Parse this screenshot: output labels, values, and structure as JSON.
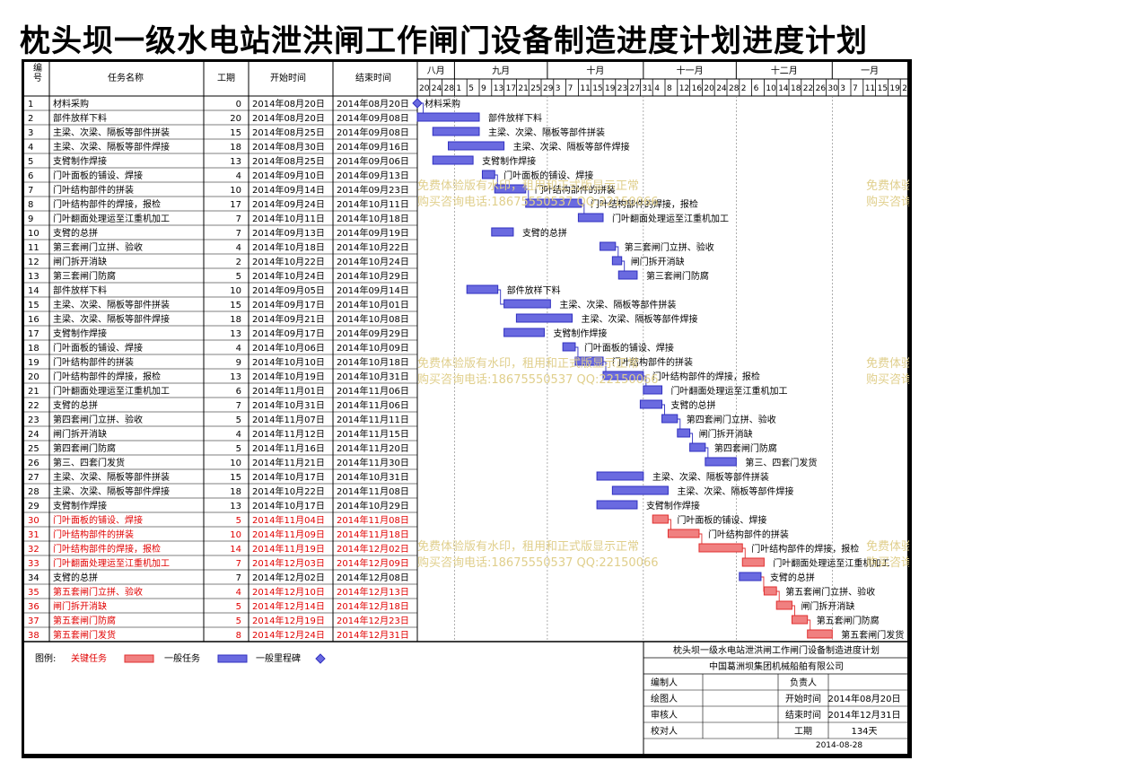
{
  "title": "枕头坝一级水电站泄洪闸工作闸门设备制造进度计划进度计划",
  "columns": {
    "no": "编号",
    "name": "任务名称",
    "dur": "工期",
    "start": "开始时间",
    "end": "结束时间"
  },
  "months": [
    "八月",
    "九月",
    "十月",
    "十一月",
    "十二月",
    "一月"
  ],
  "day_ticks": [
    "20",
    "24",
    "28",
    "1",
    "5",
    "9",
    "13",
    "17",
    "21",
    "25",
    "29",
    "3",
    "7",
    "11",
    "15",
    "19",
    "23",
    "27",
    "31",
    "4",
    "8",
    "12",
    "16",
    "20",
    "24",
    "28",
    "2",
    "6",
    "10",
    "14",
    "18",
    "22",
    "26",
    "30",
    "3",
    "7",
    "11",
    "15",
    "19",
    "23"
  ],
  "colors": {
    "critical": "#e03030",
    "normal": "#3030c0",
    "critical_fill": "#f08080",
    "normal_fill": "#6a6ae0",
    "critical_text": "#e00000",
    "grid": "#7a7a7a",
    "watermark": "#e0cf8c"
  },
  "chart_data": {
    "type": "gantt",
    "x_axis": {
      "start": "2014-08-20",
      "end": "2015-01-24",
      "unit": "day"
    },
    "tasks": [
      {
        "no": "1",
        "name": "材料采购",
        "dur": "0",
        "start": "2014年08月20日",
        "end": "2014年08月20日",
        "s": "2014-08-20",
        "e": "2014-08-20",
        "critical": false,
        "milestone": true
      },
      {
        "no": "2",
        "name": "部件放样下料",
        "dur": "20",
        "start": "2014年08月20日",
        "end": "2014年09月08日",
        "s": "2014-08-20",
        "e": "2014-09-08",
        "critical": false
      },
      {
        "no": "3",
        "name": "主梁、次梁、隔板等部件拼装",
        "dur": "15",
        "start": "2014年08月25日",
        "end": "2014年09月08日",
        "s": "2014-08-25",
        "e": "2014-09-08",
        "critical": false
      },
      {
        "no": "4",
        "name": "主梁、次梁、隔板等部件焊接",
        "dur": "18",
        "start": "2014年08月30日",
        "end": "2014年09月16日",
        "s": "2014-08-30",
        "e": "2014-09-16",
        "critical": false
      },
      {
        "no": "5",
        "name": "支臂制作焊接",
        "dur": "13",
        "start": "2014年08月25日",
        "end": "2014年09月06日",
        "s": "2014-08-25",
        "e": "2014-09-06",
        "critical": false
      },
      {
        "no": "6",
        "name": "门叶面板的铺设、焊接",
        "dur": "4",
        "start": "2014年09月10日",
        "end": "2014年09月13日",
        "s": "2014-09-10",
        "e": "2014-09-13",
        "critical": false
      },
      {
        "no": "7",
        "name": "门叶结构部件的拼装",
        "dur": "10",
        "start": "2014年09月14日",
        "end": "2014年09月23日",
        "s": "2014-09-14",
        "e": "2014-09-23",
        "critical": false
      },
      {
        "no": "8",
        "name": "门叶结构部件的焊接，报检",
        "dur": "17",
        "start": "2014年09月24日",
        "end": "2014年10月11日",
        "s": "2014-09-24",
        "e": "2014-10-11",
        "critical": false
      },
      {
        "no": "9",
        "name": "门叶翻面处理运至江重机加工",
        "dur": "7",
        "start": "2014年10月11日",
        "end": "2014年10月18日",
        "s": "2014-10-11",
        "e": "2014-10-18",
        "critical": false
      },
      {
        "no": "10",
        "name": "支臂的总拼",
        "dur": "7",
        "start": "2014年09月13日",
        "end": "2014年09月19日",
        "s": "2014-09-13",
        "e": "2014-09-19",
        "critical": false
      },
      {
        "no": "11",
        "name": "第三套闸门立拼、验收",
        "dur": "4",
        "start": "2014年10月18日",
        "end": "2014年10月22日",
        "s": "2014-10-18",
        "e": "2014-10-22",
        "critical": false
      },
      {
        "no": "12",
        "name": "闸门拆开消缺",
        "dur": "2",
        "start": "2014年10月22日",
        "end": "2014年10月24日",
        "s": "2014-10-22",
        "e": "2014-10-24",
        "critical": false
      },
      {
        "no": "13",
        "name": "第三套闸门防腐",
        "dur": "5",
        "start": "2014年10月24日",
        "end": "2014年10月29日",
        "s": "2014-10-24",
        "e": "2014-10-29",
        "critical": false
      },
      {
        "no": "14",
        "name": "部件放样下料",
        "dur": "10",
        "start": "2014年09月05日",
        "end": "2014年09月14日",
        "s": "2014-09-05",
        "e": "2014-09-14",
        "critical": false
      },
      {
        "no": "15",
        "name": "主梁、次梁、隔板等部件拼装",
        "dur": "15",
        "start": "2014年09月17日",
        "end": "2014年10月01日",
        "s": "2014-09-17",
        "e": "2014-10-01",
        "critical": false
      },
      {
        "no": "16",
        "name": "主梁、次梁、隔板等部件焊接",
        "dur": "18",
        "start": "2014年09月21日",
        "end": "2014年10月08日",
        "s": "2014-09-21",
        "e": "2014-10-08",
        "critical": false
      },
      {
        "no": "17",
        "name": "支臂制作焊接",
        "dur": "13",
        "start": "2014年09月17日",
        "end": "2014年09月29日",
        "s": "2014-09-17",
        "e": "2014-09-29",
        "critical": false
      },
      {
        "no": "18",
        "name": "门叶面板的铺设、焊接",
        "dur": "4",
        "start": "2014年10月06日",
        "end": "2014年10月09日",
        "s": "2014-10-06",
        "e": "2014-10-09",
        "critical": false
      },
      {
        "no": "19",
        "name": "门叶结构部件的拼装",
        "dur": "9",
        "start": "2014年10月10日",
        "end": "2014年10月18日",
        "s": "2014-10-10",
        "e": "2014-10-18",
        "critical": false
      },
      {
        "no": "20",
        "name": "门叶结构部件的焊接，报检",
        "dur": "13",
        "start": "2014年10月19日",
        "end": "2014年10月31日",
        "s": "2014-10-19",
        "e": "2014-10-31",
        "critical": false
      },
      {
        "no": "21",
        "name": "门叶翻面处理运至江重机加工",
        "dur": "6",
        "start": "2014年11月01日",
        "end": "2014年11月06日",
        "s": "2014-11-01",
        "e": "2014-11-06",
        "critical": false
      },
      {
        "no": "22",
        "name": "支臂的总拼",
        "dur": "7",
        "start": "2014年10月31日",
        "end": "2014年11月06日",
        "s": "2014-10-31",
        "e": "2014-11-06",
        "critical": false
      },
      {
        "no": "23",
        "name": "第四套闸门立拼、验收",
        "dur": "5",
        "start": "2014年11月07日",
        "end": "2014年11月11日",
        "s": "2014-11-07",
        "e": "2014-11-11",
        "critical": false
      },
      {
        "no": "24",
        "name": "闸门拆开消缺",
        "dur": "4",
        "start": "2014年11月12日",
        "end": "2014年11月15日",
        "s": "2014-11-12",
        "e": "2014-11-15",
        "critical": false
      },
      {
        "no": "25",
        "name": "第四套闸门防腐",
        "dur": "5",
        "start": "2014年11月16日",
        "end": "2014年11月20日",
        "s": "2014-11-16",
        "e": "2014-11-20",
        "critical": false
      },
      {
        "no": "26",
        "name": "第三、四套门发货",
        "dur": "10",
        "start": "2014年11月21日",
        "end": "2014年11月30日",
        "s": "2014-11-21",
        "e": "2014-11-30",
        "critical": false
      },
      {
        "no": "27",
        "name": "主梁、次梁、隔板等部件拼装",
        "dur": "15",
        "start": "2014年10月17日",
        "end": "2014年10月31日",
        "s": "2014-10-17",
        "e": "2014-10-31",
        "critical": false
      },
      {
        "no": "28",
        "name": "主梁、次梁、隔板等部件焊接",
        "dur": "18",
        "start": "2014年10月22日",
        "end": "2014年11月08日",
        "s": "2014-10-22",
        "e": "2014-11-08",
        "critical": false
      },
      {
        "no": "29",
        "name": "支臂制作焊接",
        "dur": "13",
        "start": "2014年10月17日",
        "end": "2014年10月29日",
        "s": "2014-10-17",
        "e": "2014-10-29",
        "critical": false
      },
      {
        "no": "30",
        "name": "门叶面板的铺设、焊接",
        "dur": "5",
        "start": "2014年11月04日",
        "end": "2014年11月08日",
        "s": "2014-11-04",
        "e": "2014-11-08",
        "critical": true
      },
      {
        "no": "31",
        "name": "门叶结构部件的拼装",
        "dur": "10",
        "start": "2014年11月09日",
        "end": "2014年11月18日",
        "s": "2014-11-09",
        "e": "2014-11-18",
        "critical": true
      },
      {
        "no": "32",
        "name": "门叶结构部件的焊接，报检",
        "dur": "14",
        "start": "2014年11月19日",
        "end": "2014年12月02日",
        "s": "2014-11-19",
        "e": "2014-12-02",
        "critical": true
      },
      {
        "no": "33",
        "name": "门叶翻面处理运至江重机加工",
        "dur": "7",
        "start": "2014年12月03日",
        "end": "2014年12月09日",
        "s": "2014-12-03",
        "e": "2014-12-09",
        "critical": true
      },
      {
        "no": "34",
        "name": "支臂的总拼",
        "dur": "7",
        "start": "2014年12月02日",
        "end": "2014年12月08日",
        "s": "2014-12-02",
        "e": "2014-12-08",
        "critical": false
      },
      {
        "no": "35",
        "name": "第五套闸门立拼、验收",
        "dur": "4",
        "start": "2014年12月10日",
        "end": "2014年12月13日",
        "s": "2014-12-10",
        "e": "2014-12-13",
        "critical": true
      },
      {
        "no": "36",
        "name": "闸门拆开消缺",
        "dur": "5",
        "start": "2014年12月14日",
        "end": "2014年12月18日",
        "s": "2014-12-14",
        "e": "2014-12-18",
        "critical": true
      },
      {
        "no": "37",
        "name": "第五套闸门防腐",
        "dur": "5",
        "start": "2014年12月19日",
        "end": "2014年12月23日",
        "s": "2014-12-19",
        "e": "2014-12-23",
        "critical": true
      },
      {
        "no": "38",
        "name": "第五套闸门发货",
        "dur": "8",
        "start": "2014年12月24日",
        "end": "2014年12月31日",
        "s": "2014-12-24",
        "e": "2014-12-31",
        "critical": true
      }
    ]
  },
  "legend": {
    "label": "图例:",
    "critical": "关键任务",
    "normal": "一般任务",
    "milestone": "一般里程碑"
  },
  "info": {
    "project": "枕头坝一级水电站泄洪闸工作闸门设备制造进度计划",
    "company": "中国葛洲坝集团机械船舶有限公司",
    "rows": [
      {
        "left": "编制人",
        "mid": "负责人",
        "val": ""
      },
      {
        "left": "绘图人",
        "mid": "开始时间",
        "val": "2014年08月20日"
      },
      {
        "left": "审核人",
        "mid": "结束时间",
        "val": "2014年12月31日"
      },
      {
        "left": "校对人",
        "mid": "工期",
        "val": "134天"
      }
    ],
    "date": "2014-08-28"
  },
  "watermark": {
    "line1": "免费体验版有水印，租用和正式版显示正常",
    "line2": "购买咨询电话:18675550537 QQ:22150066"
  }
}
